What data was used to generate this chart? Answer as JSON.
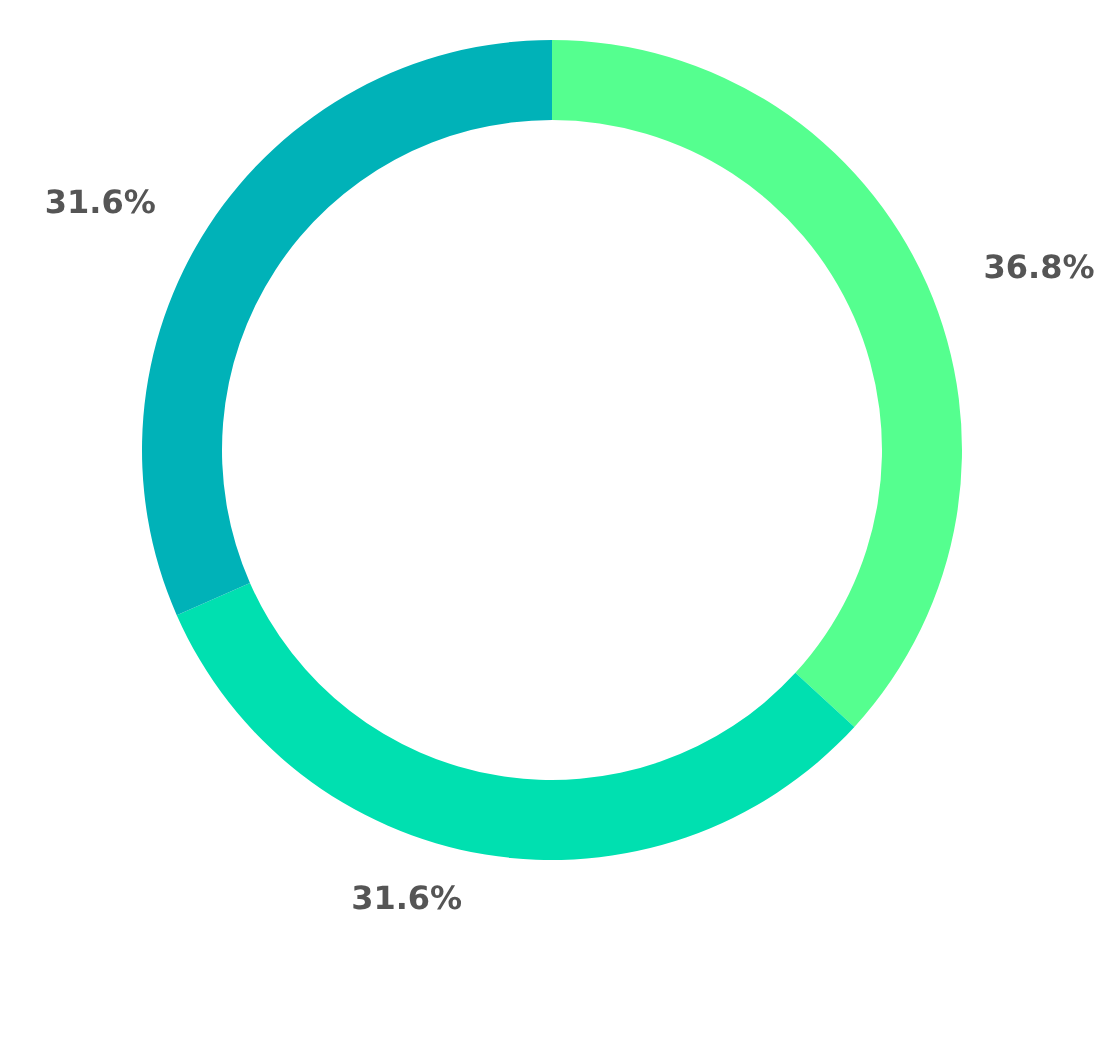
{
  "chart_data": {
    "type": "donut",
    "categories": [
      null,
      null,
      null
    ],
    "values": [
      36.8,
      31.6,
      31.6
    ],
    "colors": [
      "#55ff8f",
      "#00e0b0",
      "#00b2b8"
    ],
    "value_labels": [
      "36.8%",
      "31.6%",
      "31.6%"
    ]
  }
}
